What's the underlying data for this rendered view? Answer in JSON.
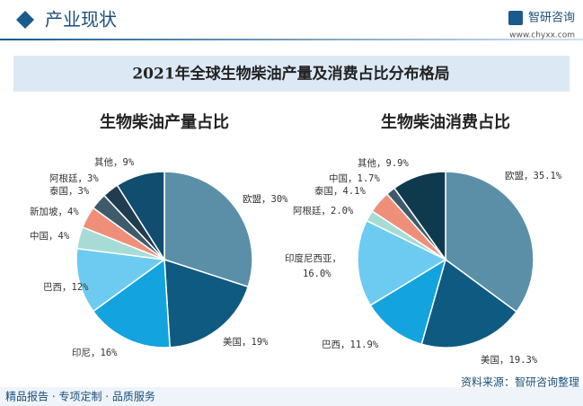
{
  "header": {
    "title": "产业现状",
    "brand": "智研咨询",
    "url": "www.chyxx.com"
  },
  "title": "2021年全球生物柴油产量及消费占比分布格局",
  "chart_data": [
    {
      "type": "pie",
      "title": "生物柴油产量占比",
      "categories": [
        "欧盟，",
        "美国，",
        "印尼，",
        "巴西，",
        "中国，",
        "新加坡，",
        "泰国，",
        "阿根廷，",
        "其他，"
      ],
      "values": [
        30,
        19,
        16,
        12,
        4,
        4,
        3,
        3,
        9
      ],
      "value_labels": [
        "30%",
        "19%",
        "16%",
        "12%",
        "4%",
        "4%",
        "3%",
        "3%",
        "9%"
      ],
      "colors": [
        "#5b8fa8",
        "#0e5a80",
        "#13a4df",
        "#6dcbf1",
        "#a7dcd6",
        "#ef8f7a",
        "#3f5b6b",
        "#203c4f",
        "#104d6f"
      ]
    },
    {
      "type": "pie",
      "title": "生物柴油消费占比",
      "categories": [
        "欧盟，",
        "美国，",
        "巴西，",
        "印度尼西亚，",
        "阿根廷，",
        "泰国，",
        "中国，",
        "其他，"
      ],
      "values": [
        35.1,
        19.3,
        11.9,
        16.0,
        2.0,
        4.1,
        1.7,
        9.9
      ],
      "value_labels": [
        "35.1%",
        "19.3%",
        "11.9%",
        "16.0%",
        "2.0%",
        "4.1%",
        "1.7%",
        "9.9%"
      ],
      "colors": [
        "#5b8fa8",
        "#0e5a80",
        "#13a4df",
        "#6dcbf1",
        "#a7dcd6",
        "#ef8f7a",
        "#3f5b6b",
        "#0f3a4e"
      ]
    }
  ],
  "source": "资料来源：智研咨询整理",
  "footer": "精品报告 · 专项定制 · 品质服务"
}
